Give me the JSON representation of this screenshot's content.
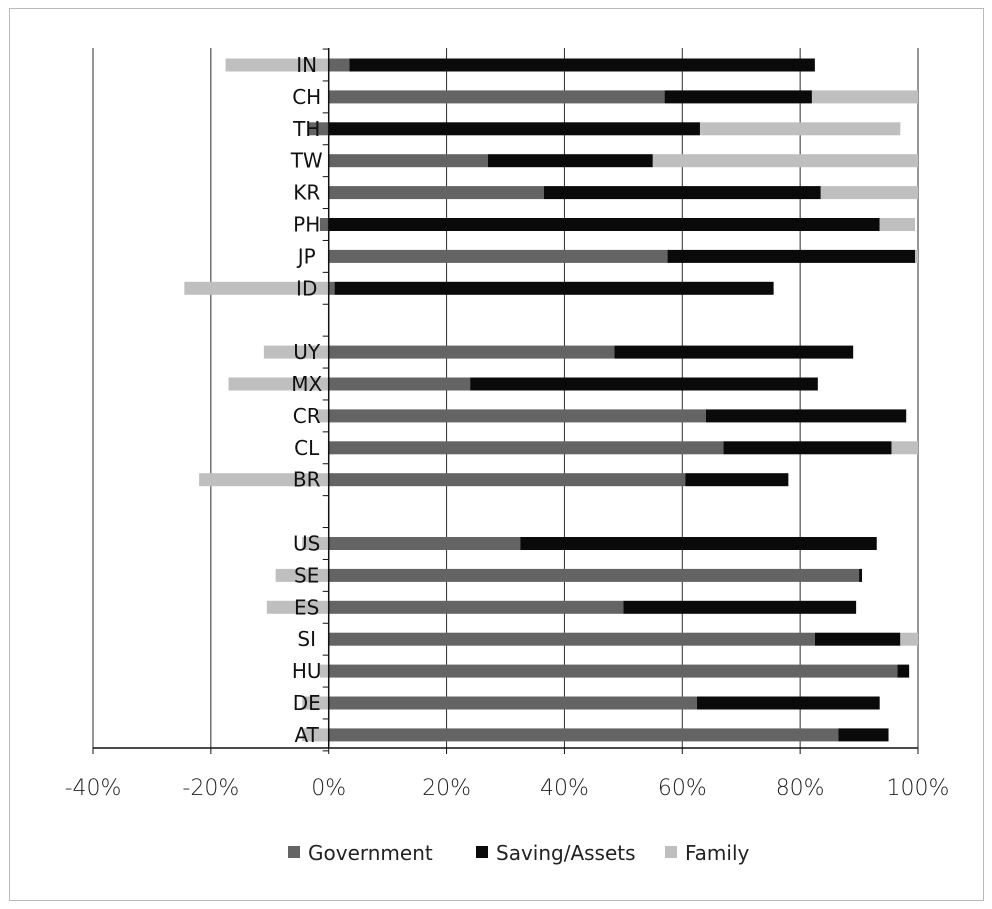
{
  "chart_data": {
    "type": "bar",
    "orientation": "horizontal",
    "stacked": true,
    "title": "",
    "xlabel": "",
    "ylabel": "",
    "xlim": [
      -0.4,
      1.0
    ],
    "x_ticks": [
      -0.4,
      -0.2,
      0,
      0.2,
      0.4,
      0.6,
      0.8,
      1.0
    ],
    "x_tick_labels": [
      "-40%",
      "-20%",
      "0%",
      "20%",
      "40%",
      "60%",
      "80%",
      "100%"
    ],
    "grid": "vertical",
    "legend_position": "bottom",
    "categories": [
      "IN",
      "CH",
      "TH",
      "TW",
      "KR",
      "PH",
      "JP",
      "ID",
      "",
      "UY",
      "MX",
      "CR",
      "CL",
      "BR",
      "",
      "US",
      "SE",
      "ES",
      "SI",
      "HU",
      "DE",
      "AT"
    ],
    "series": [
      {
        "name": "Government",
        "color": "#646464",
        "values": [
          0.035,
          0.57,
          -0.035,
          0.27,
          0.365,
          -0.015,
          0.575,
          0.01,
          null,
          0.485,
          0.24,
          0.64,
          0.67,
          0.605,
          null,
          0.325,
          0.9,
          0.5,
          0.825,
          0.965,
          0.625,
          0.865
        ]
      },
      {
        "name": "Saving/Assets",
        "color": "#0a0a0a",
        "values": [
          0.79,
          0.25,
          0.63,
          0.28,
          0.47,
          0.935,
          0.42,
          0.745,
          null,
          0.405,
          0.59,
          0.34,
          0.285,
          0.175,
          null,
          0.605,
          0.005,
          0.395,
          0.145,
          0.02,
          0.31,
          0.085
        ]
      },
      {
        "name": "Family",
        "color": "#bfbfbf",
        "values": [
          -0.175,
          0.18,
          0.34,
          0.45,
          0.165,
          0.06,
          0.005,
          -0.245,
          null,
          -0.11,
          -0.17,
          -0.02,
          0.045,
          -0.22,
          null,
          -0.045,
          -0.09,
          -0.105,
          0.03,
          -0.015,
          -0.045,
          -0.045
        ]
      }
    ]
  }
}
